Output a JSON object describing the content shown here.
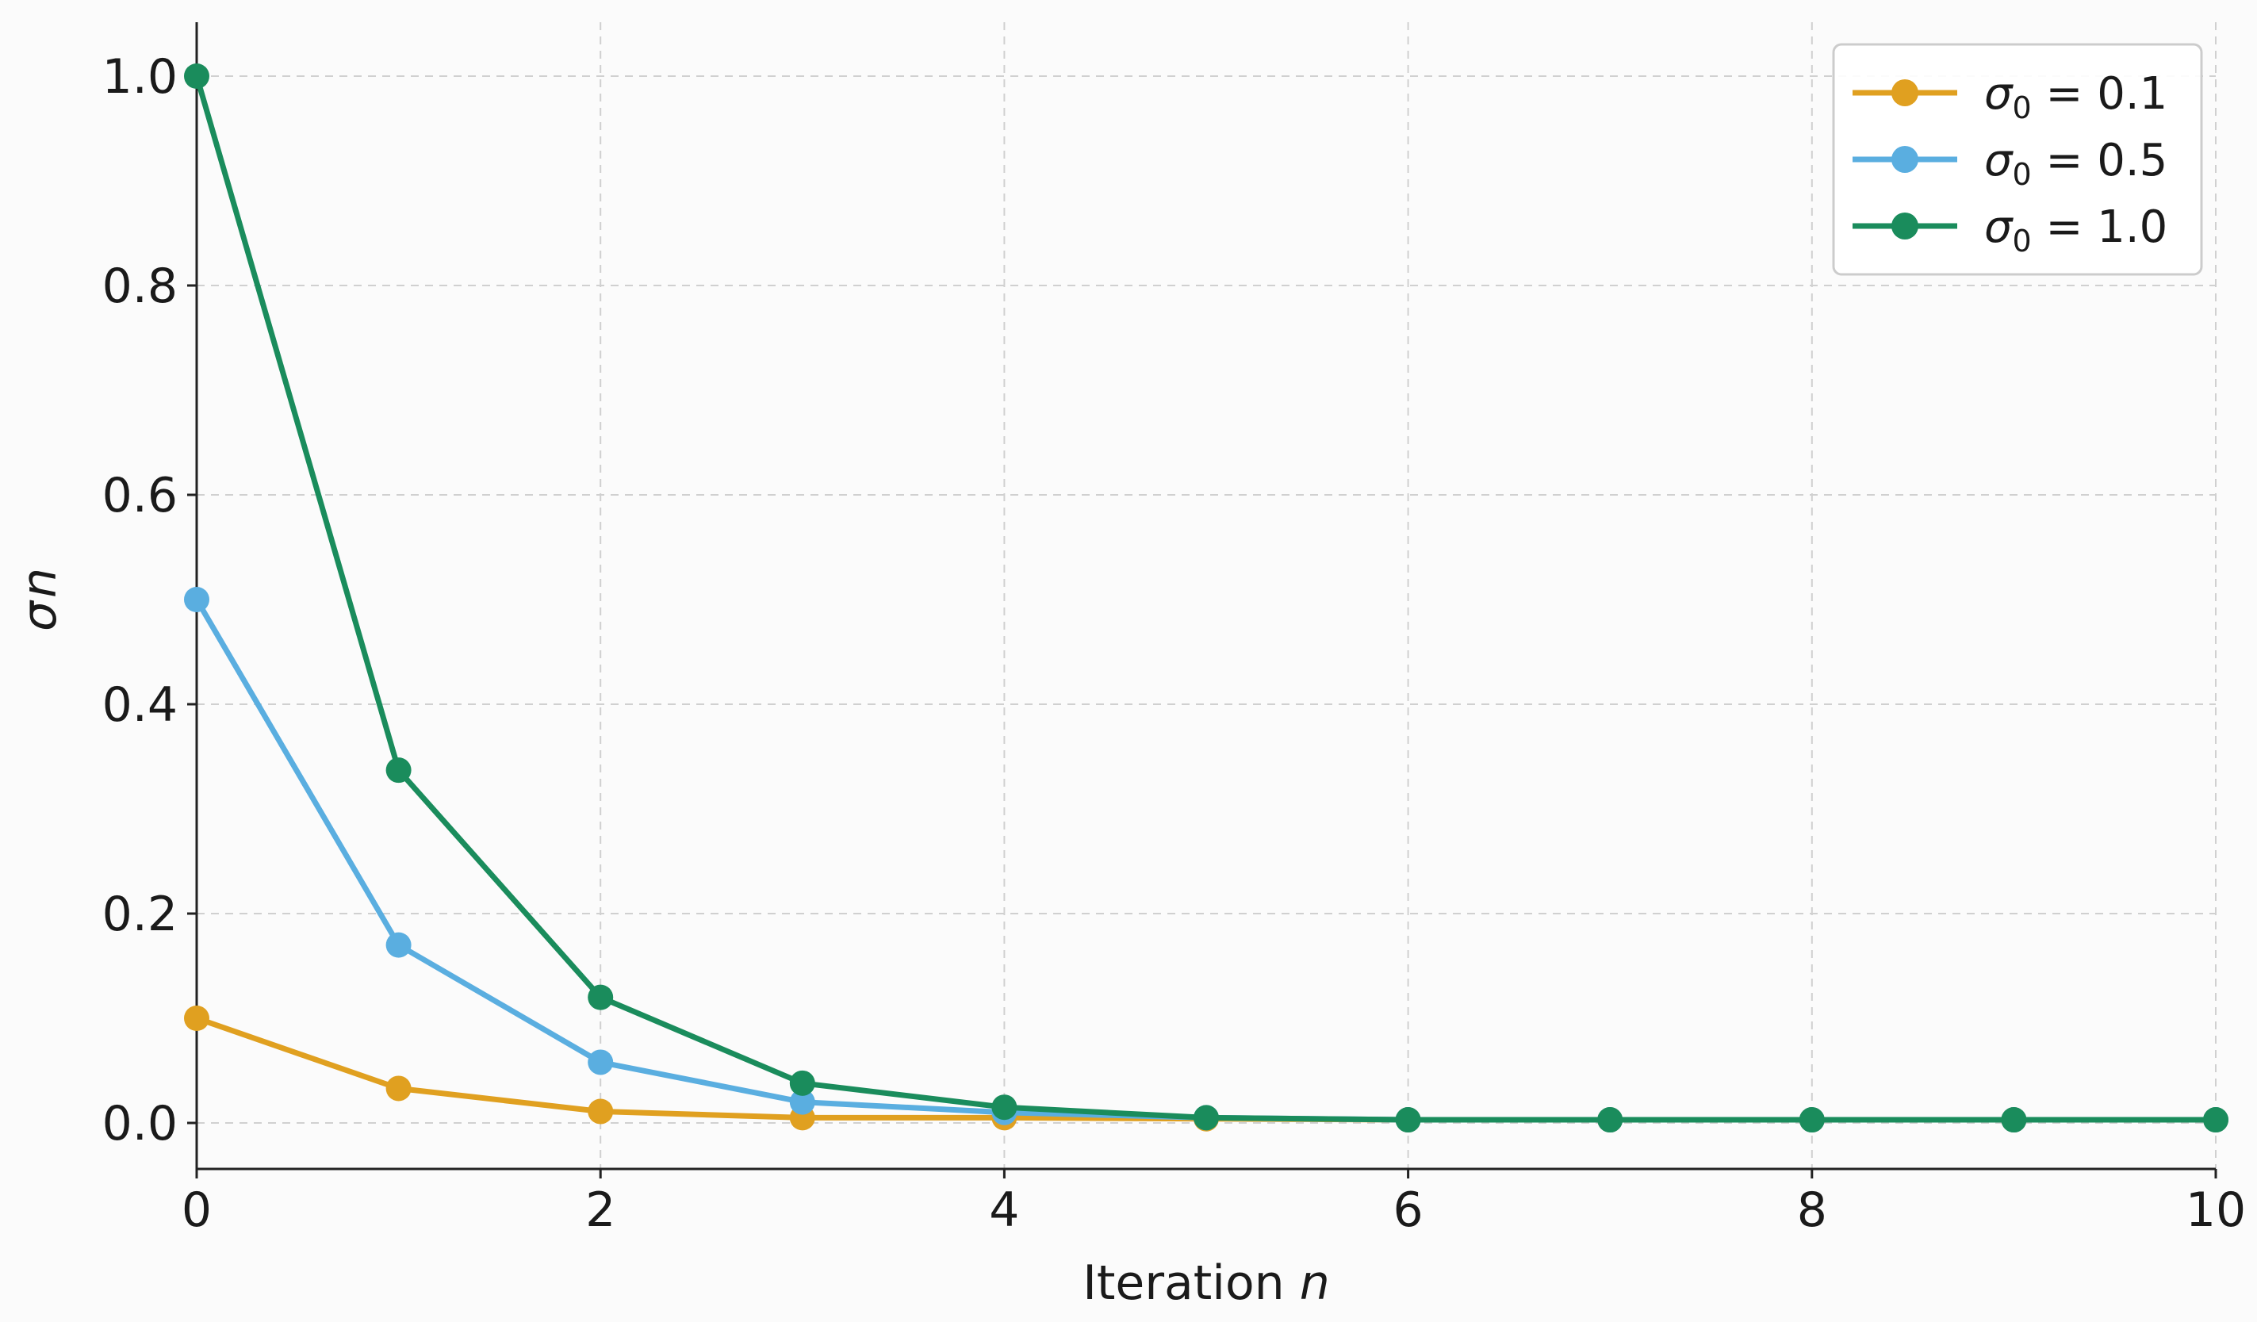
{
  "chart_data": {
    "type": "line",
    "xlabel_text": "Iteration",
    "xlabel_var": "n",
    "ylabel_main": "σ",
    "ylabel_sub": "n",
    "xlim": [
      0,
      10
    ],
    "ylim": [
      -0.045,
      1.05
    ],
    "xticks": [
      0,
      2,
      4,
      6,
      8,
      10
    ],
    "xtick_labels": [
      "0",
      "2",
      "4",
      "6",
      "8",
      "10"
    ],
    "yticks": [
      0.0,
      0.2,
      0.4,
      0.6,
      0.8,
      1.0
    ],
    "ytick_labels": [
      "0.0",
      "0.2",
      "0.4",
      "0.6",
      "0.8",
      "1.0"
    ],
    "grid": true,
    "legend_position": "top-right",
    "x": [
      0,
      1,
      2,
      3,
      4,
      5,
      6,
      7,
      8,
      9,
      10
    ],
    "series": [
      {
        "legend_prefix": "σ",
        "legend_sub": "0",
        "legend_value": " = 0.1",
        "color": "#e0a020",
        "values": [
          0.1,
          0.033,
          0.011,
          0.005,
          0.005,
          0.004,
          0.003,
          0.003,
          0.003,
          0.003,
          0.003
        ]
      },
      {
        "legend_prefix": "σ",
        "legend_sub": "0",
        "legend_value": " = 0.5",
        "color": "#5aaee0",
        "values": [
          0.5,
          0.17,
          0.058,
          0.02,
          0.01,
          0.005,
          0.003,
          0.003,
          0.003,
          0.003,
          0.003
        ]
      },
      {
        "legend_prefix": "σ",
        "legend_sub": "0",
        "legend_value": " = 1.0",
        "color": "#1a8c5c",
        "values": [
          1.0,
          0.337,
          0.12,
          0.038,
          0.015,
          0.005,
          0.003,
          0.003,
          0.003,
          0.003,
          0.003
        ]
      }
    ]
  }
}
